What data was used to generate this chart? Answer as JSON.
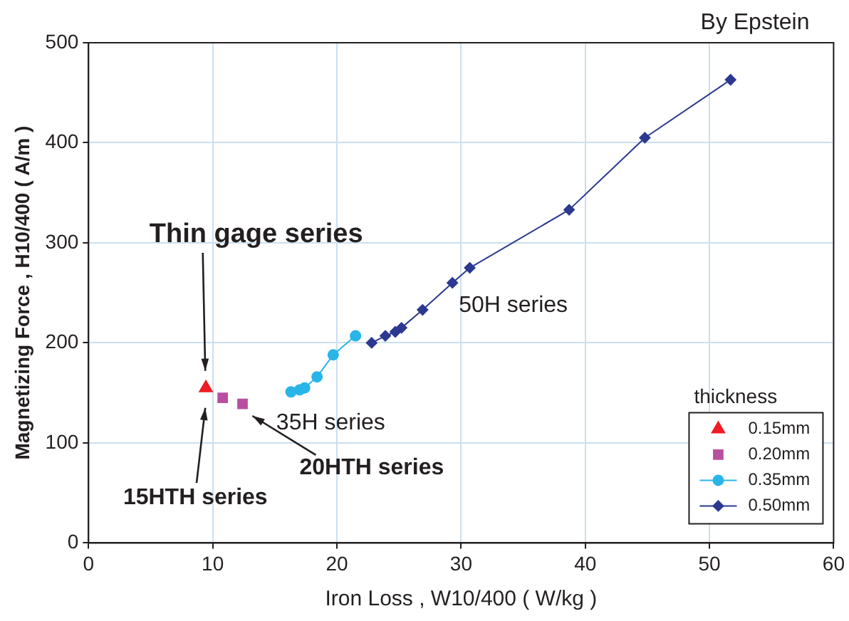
{
  "chart_data": {
    "type": "line",
    "xlabel": "Iron Loss , W10/400 ( W/kg )",
    "ylabel": "Magnetizing Force , H10/400 ( A/m )",
    "legend_title": "thickness",
    "legend": "bottom right",
    "grid": true,
    "xlim": [
      0,
      60
    ],
    "xticks": [
      0,
      10,
      20,
      30,
      40,
      50,
      60
    ],
    "ylim": [
      0,
      500
    ],
    "yticks": [
      0,
      100,
      200,
      300,
      400,
      500
    ],
    "series": [
      {
        "name": "0.15mm",
        "type": "scatter",
        "marker": "triangle",
        "color": "#ee1c25",
        "x": [
          9.45
        ],
        "values": [
          155
        ]
      },
      {
        "name": "0.20mm",
        "type": "scatter",
        "marker": "square",
        "color": "#b84fa0",
        "x": [
          10.8,
          12.4
        ],
        "values": [
          145,
          139
        ]
      },
      {
        "name": "0.35mm",
        "marker": "circle",
        "color": "#2ab5e8",
        "x": [
          16.3,
          17.0,
          17.4,
          18.4,
          19.7,
          21.5
        ],
        "values": [
          151,
          153,
          155,
          166,
          188,
          207
        ]
      },
      {
        "name": "0.50mm",
        "marker": "diamond",
        "color": "#2b3990",
        "x": [
          22.8,
          23.9,
          24.7,
          25.2,
          26.9,
          29.3,
          30.7,
          38.7,
          44.8,
          51.7
        ],
        "values": [
          200,
          207,
          211,
          215,
          233,
          260,
          275,
          333,
          405,
          463
        ]
      }
    ],
    "annotations": [
      "Thin gage series",
      "15HTH series",
      "20HTH series",
      "35H series",
      "50H series",
      "By Epstein"
    ]
  }
}
